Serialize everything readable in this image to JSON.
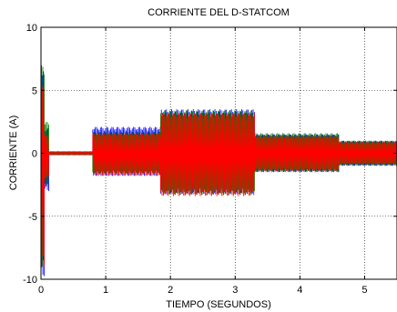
{
  "chart_data": {
    "type": "line",
    "title": "CORRIENTE DEL D-STATCOM",
    "xlabel": "TIEMPO (SEGUNDOS)",
    "ylabel": "CORRIENTE (A)",
    "xlim": [
      0,
      5.5
    ],
    "ylim": [
      -10,
      10
    ],
    "xticks": [
      0,
      1,
      2,
      3,
      4,
      5
    ],
    "yticks": [
      -10,
      -5,
      0,
      5,
      10
    ],
    "x_tick_labels": [
      "0",
      "1",
      "2",
      "3",
      "4",
      "5"
    ],
    "y_tick_labels": [
      "-10",
      "-5",
      "0",
      "5",
      "10"
    ],
    "grid": true,
    "series": [
      {
        "color": "#0000ff",
        "envelope": [
          {
            "t0": 0.0,
            "t1": 0.05,
            "min": -9.8,
            "max": 6.5
          },
          {
            "t0": 0.05,
            "t1": 0.12,
            "min": -3.0,
            "max": 2.0
          },
          {
            "t0": 0.12,
            "t1": 0.8,
            "min": -0.15,
            "max": 0.15
          },
          {
            "t0": 0.8,
            "t1": 1.85,
            "min": -1.8,
            "max": 2.1
          },
          {
            "t0": 1.85,
            "t1": 3.3,
            "min": -3.2,
            "max": 3.5
          },
          {
            "t0": 3.3,
            "t1": 4.6,
            "min": -1.5,
            "max": 1.5
          },
          {
            "t0": 4.6,
            "t1": 5.5,
            "min": -1.0,
            "max": 1.0
          }
        ]
      },
      {
        "color": "#008000",
        "envelope": [
          {
            "t0": 0.0,
            "t1": 0.05,
            "min": -9.0,
            "max": 7.0
          },
          {
            "t0": 0.05,
            "t1": 0.12,
            "min": -2.5,
            "max": 2.5
          },
          {
            "t0": 0.12,
            "t1": 0.8,
            "min": -0.15,
            "max": 0.15
          },
          {
            "t0": 0.8,
            "t1": 1.85,
            "min": -1.6,
            "max": 1.7
          },
          {
            "t0": 1.85,
            "t1": 3.3,
            "min": -3.3,
            "max": 3.4
          },
          {
            "t0": 3.3,
            "t1": 4.6,
            "min": -1.5,
            "max": 1.6
          },
          {
            "t0": 4.6,
            "t1": 5.5,
            "min": -1.0,
            "max": 1.0
          }
        ]
      },
      {
        "color": "#ff0000",
        "envelope": [
          {
            "t0": 0.0,
            "t1": 0.05,
            "min": -9.5,
            "max": 5.8
          },
          {
            "t0": 0.05,
            "t1": 0.12,
            "min": -2.0,
            "max": 1.5
          },
          {
            "t0": 0.12,
            "t1": 0.8,
            "min": -0.12,
            "max": 0.12
          },
          {
            "t0": 0.8,
            "t1": 1.85,
            "min": -1.8,
            "max": 1.6
          },
          {
            "t0": 1.85,
            "t1": 3.3,
            "min": -3.4,
            "max": 3.2
          },
          {
            "t0": 3.3,
            "t1": 4.6,
            "min": -1.4,
            "max": 1.4
          },
          {
            "t0": 4.6,
            "t1": 5.5,
            "min": -0.9,
            "max": 0.9
          }
        ]
      }
    ]
  }
}
